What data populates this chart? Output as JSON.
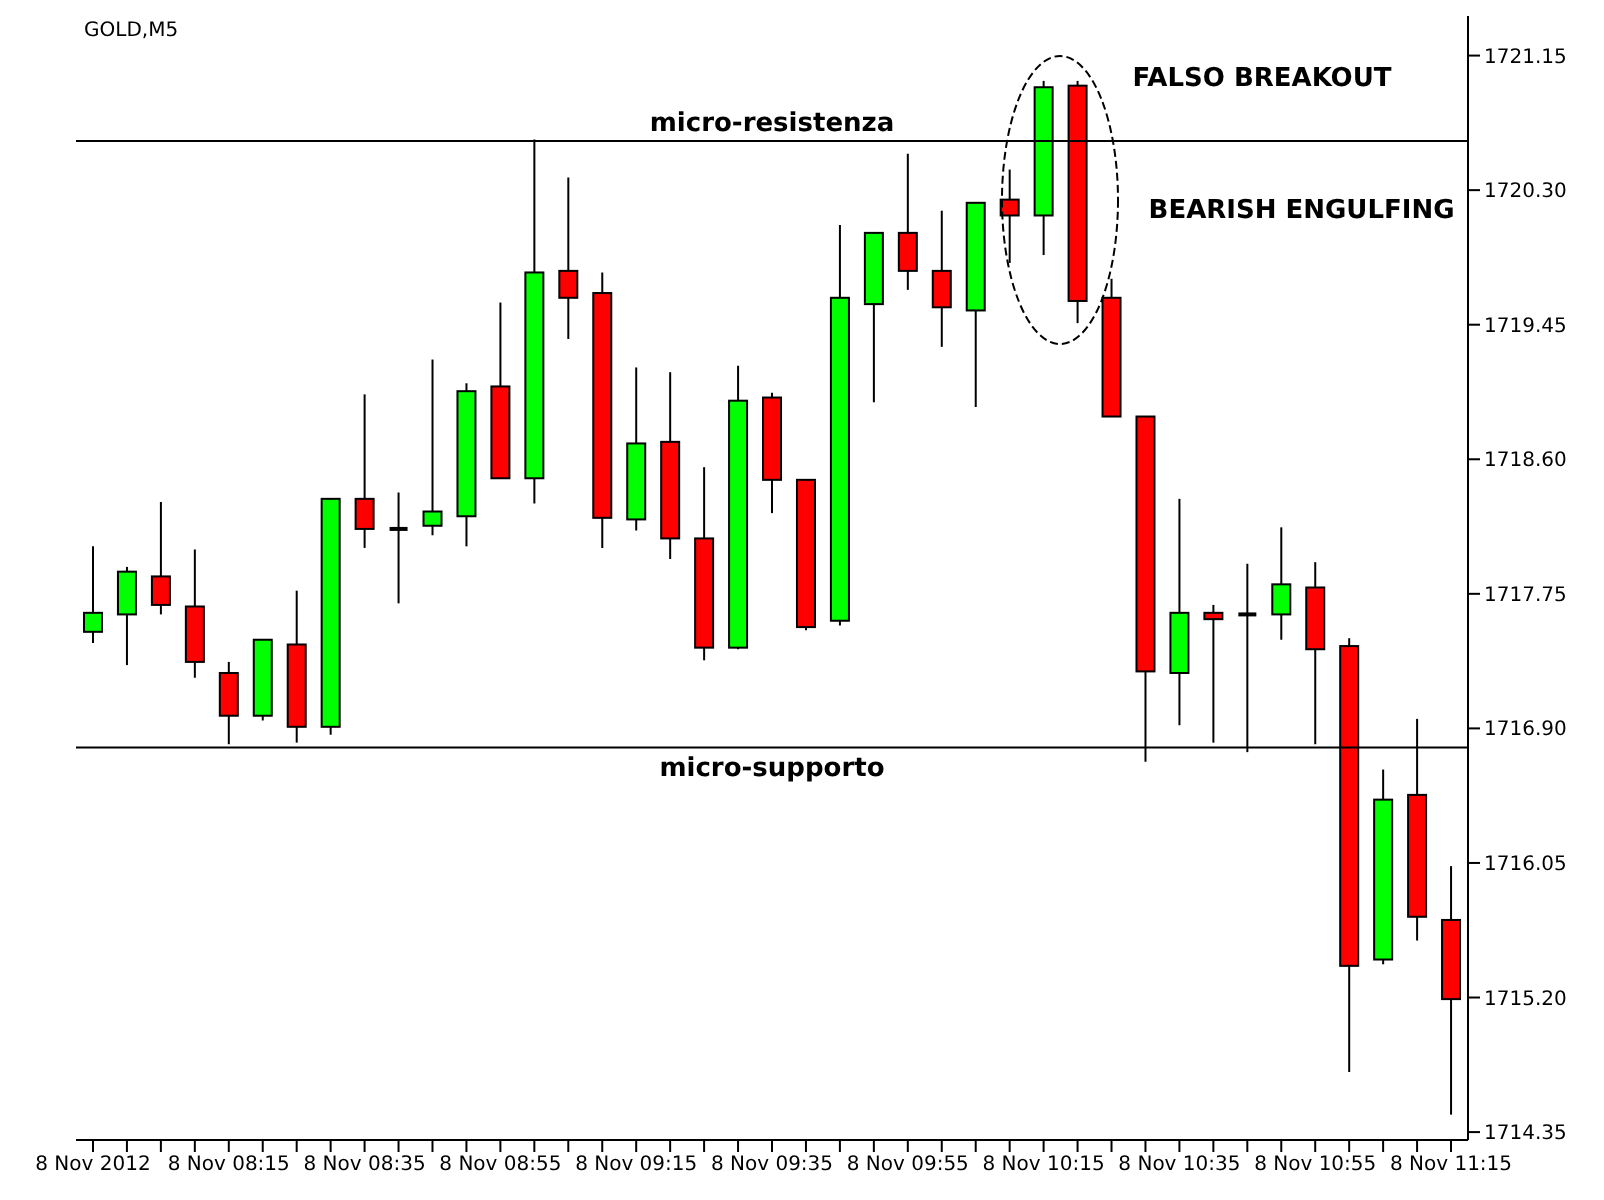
{
  "chart_data": {
    "type": "candlestick",
    "title": "GOLD,M5",
    "categories": [
      "8 Nov 2012",
      null,
      null,
      null,
      "8 Nov 08:15",
      null,
      null,
      null,
      "8 Nov 08:35",
      null,
      null,
      null,
      "8 Nov 08:55",
      null,
      null,
      null,
      "8 Nov 09:15",
      null,
      null,
      null,
      "8 Nov 09:35",
      null,
      null,
      null,
      "8 Nov 09:55",
      null,
      null,
      null,
      "8 Nov 10:15",
      null,
      null,
      null,
      "8 Nov 10:35",
      null,
      null,
      null,
      "8 Nov 10:55",
      null,
      null,
      null,
      "8 Nov 11:15"
    ],
    "ohlc": [
      [
        1717.51,
        1718.05,
        1717.44,
        1717.63
      ],
      [
        1717.62,
        1717.92,
        1717.3,
        1717.89
      ],
      [
        1717.86,
        1718.33,
        1717.62,
        1717.68
      ],
      [
        1717.67,
        1718.03,
        1717.22,
        1717.32
      ],
      [
        1717.25,
        1717.32,
        1716.8,
        1716.98
      ],
      [
        1716.98,
        1717.46,
        1716.95,
        1717.46
      ],
      [
        1717.43,
        1717.77,
        1716.81,
        1716.91
      ],
      [
        1716.91,
        1718.35,
        1716.86,
        1718.35
      ],
      [
        1718.35,
        1719.01,
        1718.04,
        1718.16
      ],
      [
        1718.16,
        1718.39,
        1717.69,
        1718.16
      ],
      [
        1718.18,
        1719.23,
        1718.12,
        1718.27
      ],
      [
        1718.24,
        1719.08,
        1718.05,
        1719.03
      ],
      [
        1719.06,
        1719.59,
        1718.48,
        1718.48
      ],
      [
        1718.48,
        1720.62,
        1718.32,
        1719.78
      ],
      [
        1719.79,
        1720.38,
        1719.36,
        1719.62
      ],
      [
        1719.65,
        1719.78,
        1718.04,
        1718.23
      ],
      [
        1718.22,
        1719.18,
        1718.15,
        1718.7
      ],
      [
        1718.71,
        1719.15,
        1717.97,
        1718.1
      ],
      [
        1718.1,
        1718.55,
        1717.33,
        1717.41
      ],
      [
        1717.41,
        1719.19,
        1717.4,
        1718.97
      ],
      [
        1718.99,
        1719.02,
        1718.26,
        1718.47
      ],
      [
        1718.47,
        1718.47,
        1717.52,
        1717.54
      ],
      [
        1717.58,
        1720.08,
        1717.55,
        1719.62
      ],
      [
        1719.58,
        1720.03,
        1718.96,
        1720.03
      ],
      [
        1720.03,
        1720.53,
        1719.67,
        1719.79
      ],
      [
        1719.79,
        1720.17,
        1719.31,
        1719.56
      ],
      [
        1719.54,
        1720.22,
        1718.93,
        1720.22
      ],
      [
        1720.24,
        1720.43,
        1719.84,
        1720.14
      ],
      [
        1720.14,
        1720.99,
        1719.89,
        1720.95
      ],
      [
        1720.96,
        1720.99,
        1719.46,
        1719.6
      ],
      [
        1719.62,
        1719.74,
        1718.87,
        1718.87
      ],
      [
        1718.87,
        1718.87,
        1716.69,
        1717.26
      ],
      [
        1717.25,
        1718.35,
        1716.92,
        1717.63
      ],
      [
        1717.63,
        1717.68,
        1716.81,
        1717.59
      ],
      [
        1717.62,
        1717.94,
        1716.75,
        1717.62
      ],
      [
        1717.62,
        1718.17,
        1717.46,
        1717.81
      ],
      [
        1717.79,
        1717.95,
        1716.8,
        1717.4
      ],
      [
        1717.42,
        1717.47,
        1714.73,
        1715.4
      ],
      [
        1715.44,
        1716.64,
        1715.41,
        1716.45
      ],
      [
        1716.48,
        1716.96,
        1715.56,
        1715.71
      ],
      [
        1715.69,
        1716.03,
        1714.46,
        1715.19
      ]
    ],
    "colors": [
      "#00ff00",
      "#00ff00",
      "#ff0000",
      "#ff0000",
      "#ff0000",
      "#00ff00",
      "#ff0000",
      "#00ff00",
      "#ff0000",
      "#000000",
      "#00ff00",
      "#00ff00",
      "#ff0000",
      "#00ff00",
      "#ff0000",
      "#ff0000",
      "#00ff00",
      "#ff0000",
      "#ff0000",
      "#00ff00",
      "#ff0000",
      "#ff0000",
      "#00ff00",
      "#00ff00",
      "#ff0000",
      "#ff0000",
      "#00ff00",
      "#ff0000",
      "#00ff00",
      "#ff0000",
      "#ff0000",
      "#ff0000",
      "#00ff00",
      "#ff0000",
      "#000000",
      "#00ff00",
      "#ff0000",
      "#ff0000",
      "#00ff00",
      "#ff0000",
      "#ff0000"
    ],
    "ylim": [
      1714.3,
      1721.4
    ],
    "yticks": [
      {
        "value": 1714.35,
        "label": "1714.35"
      },
      {
        "value": 1715.2,
        "label": "1715.20"
      },
      {
        "value": 1716.05,
        "label": "1716.05"
      },
      {
        "value": 1716.9,
        "label": "1716.90"
      },
      {
        "value": 1717.75,
        "label": "1717.75"
      },
      {
        "value": 1718.6,
        "label": "1718.60"
      },
      {
        "value": 1719.45,
        "label": "1719.45"
      },
      {
        "value": 1720.3,
        "label": "1720.30"
      },
      {
        "value": 1721.15,
        "label": "1721.15"
      }
    ],
    "ref_lines": [
      {
        "axis": "y",
        "value": 1720.61,
        "label": "micro-resistenza",
        "color": "#000000"
      },
      {
        "axis": "y",
        "value": 1716.78,
        "label": "micro-supporto",
        "color": "#000000"
      }
    ],
    "annotations": [
      "FALSO BREAKOUT",
      "BEARISH ENGULFING"
    ]
  }
}
